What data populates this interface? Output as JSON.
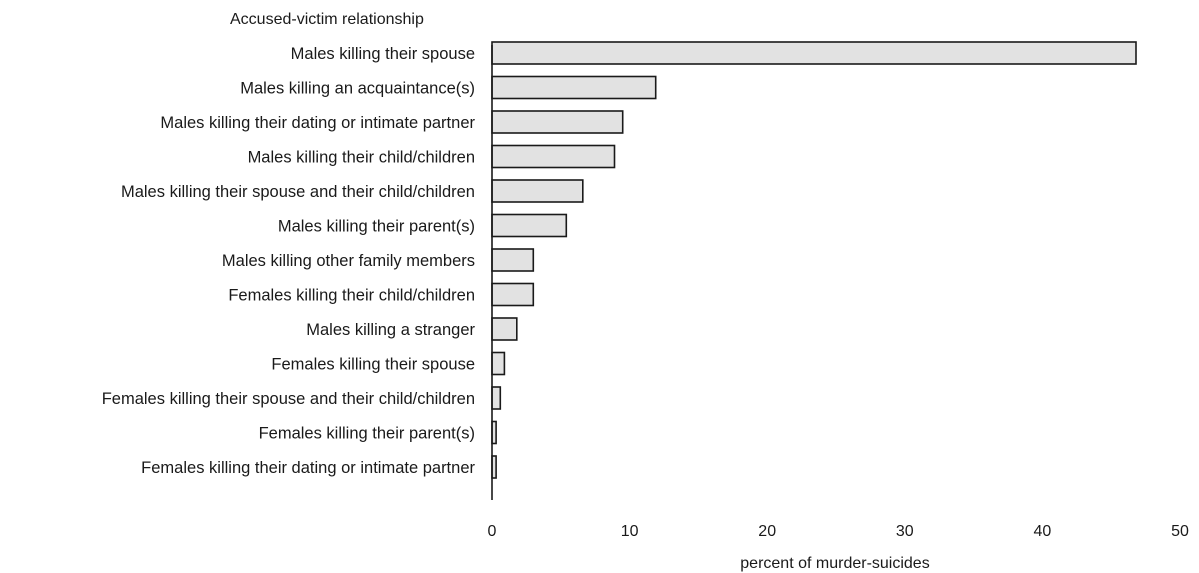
{
  "chart_data": {
    "type": "bar",
    "orientation": "horizontal",
    "ylabel": "Accused-victim relationship",
    "xlabel": "percent of murder-suicides",
    "xlim": [
      0,
      50
    ],
    "xticks": [
      0,
      10,
      20,
      30,
      40,
      50
    ],
    "grid": false,
    "bar_color": "#e2e2e2",
    "categories": [
      "Males killing their spouse",
      "Males killing an acquaintance(s)",
      "Males killing their dating or intimate partner",
      "Males killing their child/children",
      "Males killing their spouse and their child/children",
      "Males killing their parent(s)",
      "Males killing other family members",
      "Females killing their child/children",
      "Males killing a stranger",
      "Females killing their spouse",
      "Females killing their spouse and their child/children",
      "Females killing their parent(s)",
      "Females killing their dating or intimate partner"
    ],
    "values": [
      46.8,
      11.9,
      9.5,
      8.9,
      6.6,
      5.4,
      3.0,
      3.0,
      1.8,
      0.9,
      0.6,
      0.3,
      0.3
    ]
  }
}
